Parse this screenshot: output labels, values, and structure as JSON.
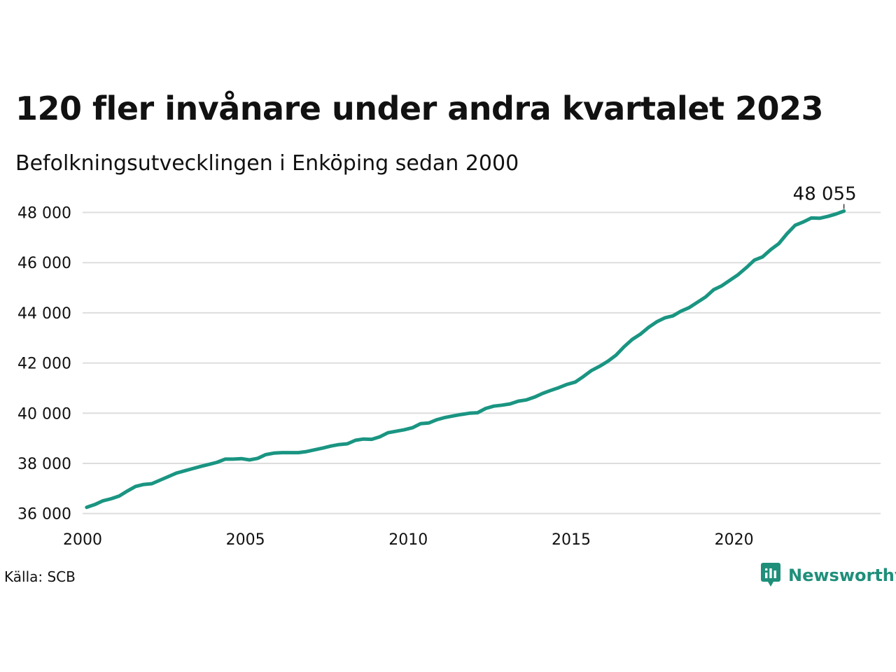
{
  "header": {
    "title": "120 fler invånare under andra kvartalet 2023",
    "subtitle": "Befolkningsutvecklingen i Enköping sedan 2000"
  },
  "footer": {
    "source": "Källa: SCB",
    "brand": "Newsworthy"
  },
  "colors": {
    "line": "#1a9582",
    "grid": "#dddddd",
    "brand": "#1f8f7a"
  },
  "icons": {
    "brand_logo": "newsworthy-chart-bubble-icon"
  },
  "chart_data": {
    "type": "line",
    "x_label": "",
    "y_label": "",
    "x_ticks": [
      2000,
      2005,
      2010,
      2015,
      2020
    ],
    "y_ticks": [
      36000,
      38000,
      40000,
      42000,
      44000,
      46000,
      48000
    ],
    "y_tick_labels": [
      "36 000",
      "38 000",
      "40 000",
      "42 000",
      "44 000",
      "46 000",
      "48 000"
    ],
    "xlim": [
      2000,
      2024.5
    ],
    "ylim": [
      35600,
      48600
    ],
    "grid": true,
    "end_label": "48 055",
    "series": [
      {
        "points": [
          [
            2000.125,
            36250
          ],
          [
            2000.375,
            36360
          ],
          [
            2000.625,
            36510
          ],
          [
            2000.875,
            36590
          ],
          [
            2001.125,
            36700
          ],
          [
            2001.375,
            36900
          ],
          [
            2001.625,
            37080
          ],
          [
            2001.875,
            37160
          ],
          [
            2002.125,
            37190
          ],
          [
            2002.375,
            37330
          ],
          [
            2002.625,
            37470
          ],
          [
            2002.875,
            37610
          ],
          [
            2003.125,
            37700
          ],
          [
            2003.375,
            37790
          ],
          [
            2003.625,
            37880
          ],
          [
            2003.875,
            37960
          ],
          [
            2004.125,
            38040
          ],
          [
            2004.375,
            38170
          ],
          [
            2004.625,
            38170
          ],
          [
            2004.875,
            38190
          ],
          [
            2005.125,
            38140
          ],
          [
            2005.375,
            38200
          ],
          [
            2005.625,
            38350
          ],
          [
            2005.875,
            38410
          ],
          [
            2006.125,
            38430
          ],
          [
            2006.375,
            38430
          ],
          [
            2006.625,
            38430
          ],
          [
            2006.875,
            38470
          ],
          [
            2007.125,
            38540
          ],
          [
            2007.375,
            38610
          ],
          [
            2007.625,
            38690
          ],
          [
            2007.875,
            38750
          ],
          [
            2008.125,
            38780
          ],
          [
            2008.375,
            38920
          ],
          [
            2008.625,
            38970
          ],
          [
            2008.875,
            38960
          ],
          [
            2009.125,
            39060
          ],
          [
            2009.375,
            39220
          ],
          [
            2009.625,
            39280
          ],
          [
            2009.875,
            39340
          ],
          [
            2010.125,
            39420
          ],
          [
            2010.375,
            39580
          ],
          [
            2010.625,
            39610
          ],
          [
            2010.875,
            39740
          ],
          [
            2011.125,
            39830
          ],
          [
            2011.375,
            39890
          ],
          [
            2011.625,
            39950
          ],
          [
            2011.875,
            40000
          ],
          [
            2012.125,
            40020
          ],
          [
            2012.375,
            40190
          ],
          [
            2012.625,
            40280
          ],
          [
            2012.875,
            40320
          ],
          [
            2013.125,
            40370
          ],
          [
            2013.375,
            40480
          ],
          [
            2013.625,
            40530
          ],
          [
            2013.875,
            40640
          ],
          [
            2014.125,
            40790
          ],
          [
            2014.375,
            40910
          ],
          [
            2014.625,
            41020
          ],
          [
            2014.875,
            41150
          ],
          [
            2015.125,
            41240
          ],
          [
            2015.375,
            41460
          ],
          [
            2015.625,
            41700
          ],
          [
            2015.875,
            41870
          ],
          [
            2016.125,
            42070
          ],
          [
            2016.375,
            42310
          ],
          [
            2016.625,
            42650
          ],
          [
            2016.875,
            42940
          ],
          [
            2017.125,
            43150
          ],
          [
            2017.375,
            43420
          ],
          [
            2017.625,
            43640
          ],
          [
            2017.875,
            43800
          ],
          [
            2018.125,
            43880
          ],
          [
            2018.375,
            44070
          ],
          [
            2018.625,
            44210
          ],
          [
            2018.875,
            44420
          ],
          [
            2019.125,
            44630
          ],
          [
            2019.375,
            44920
          ],
          [
            2019.625,
            45080
          ],
          [
            2019.875,
            45300
          ],
          [
            2020.125,
            45520
          ],
          [
            2020.375,
            45800
          ],
          [
            2020.625,
            46100
          ],
          [
            2020.875,
            46230
          ],
          [
            2021.125,
            46520
          ],
          [
            2021.375,
            46760
          ],
          [
            2021.625,
            47150
          ],
          [
            2021.875,
            47490
          ],
          [
            2022.125,
            47620
          ],
          [
            2022.375,
            47780
          ],
          [
            2022.625,
            47770
          ],
          [
            2022.875,
            47840
          ],
          [
            2023.125,
            47935
          ],
          [
            2023.375,
            48055
          ]
        ]
      }
    ]
  }
}
